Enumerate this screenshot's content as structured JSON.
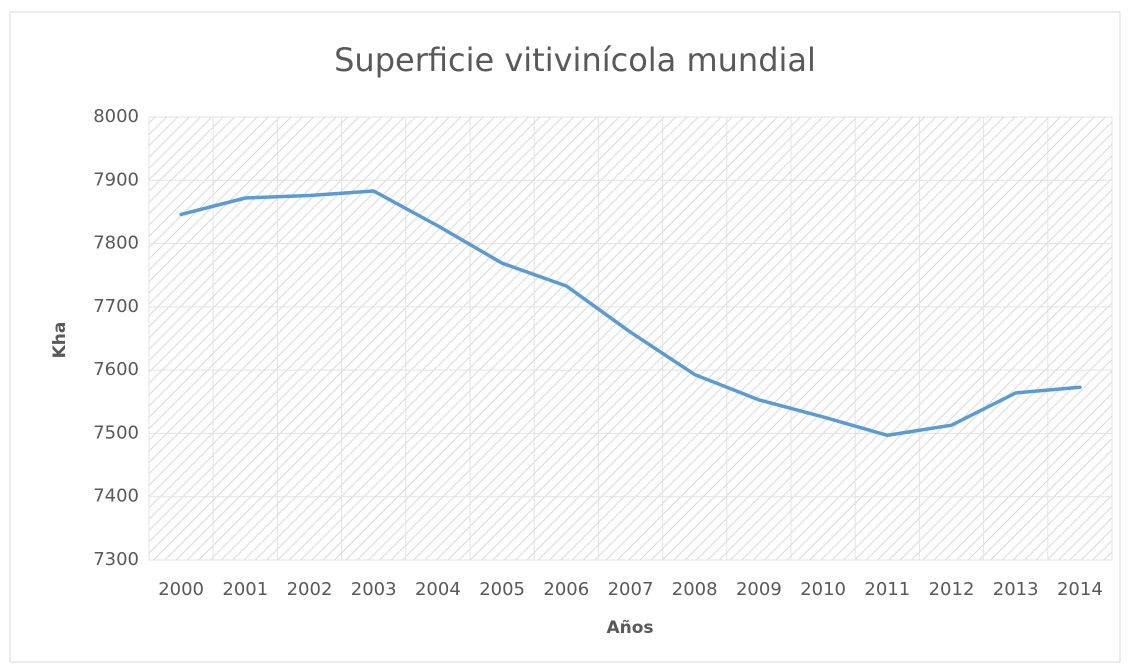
{
  "chart_data": {
    "type": "line",
    "title": "Superficie vitivinícola mundial",
    "x_label": "Años",
    "y_label": "Kha",
    "categories": [
      "2000",
      "2001",
      "2002",
      "2003",
      "2004",
      "2005",
      "2006",
      "2007",
      "2008",
      "2009",
      "2010",
      "2011",
      "2012",
      "2013",
      "2014"
    ],
    "values": [
      7846,
      7872,
      7876,
      7883,
      7828,
      7769,
      7733,
      7660,
      7593,
      7553,
      7526,
      7497,
      7513,
      7564,
      7573
    ],
    "color": "#5b9bd5",
    "ylim": [
      7300,
      8000
    ],
    "yticks": [
      7300,
      7400,
      7500,
      7600,
      7700,
      7800,
      7900,
      8000
    ],
    "grid": true
  }
}
